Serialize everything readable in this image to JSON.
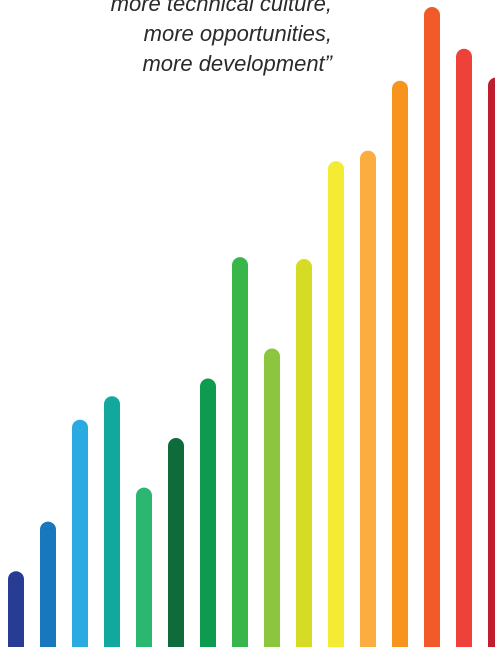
{
  "quote": {
    "lines": [
      "more technical culture,",
      "more opportunities,",
      "more development”"
    ]
  },
  "bars": {
    "scale_max": 1.0,
    "items": [
      {
        "value": 0.136,
        "color": "#283c93"
      },
      {
        "value": 0.212,
        "color": "#1878be"
      },
      {
        "value": 0.368,
        "color": "#29aae1"
      },
      {
        "value": 0.404,
        "color": "#13a89d"
      },
      {
        "value": 0.264,
        "color": "#2cb770"
      },
      {
        "value": 0.34,
        "color": "#0f6b3a"
      },
      {
        "value": 0.431,
        "color": "#0e9a4f"
      },
      {
        "value": 0.617,
        "color": "#39b64a"
      },
      {
        "value": 0.477,
        "color": "#8cc63e"
      },
      {
        "value": 0.614,
        "color": "#d6dc26"
      },
      {
        "value": 0.764,
        "color": "#f4eb34"
      },
      {
        "value": 0.78,
        "color": "#fbae3f"
      },
      {
        "value": 0.887,
        "color": "#f7941e"
      },
      {
        "value": 1.0,
        "color": "#f15a29"
      },
      {
        "value": 0.936,
        "color": "#ed413a"
      },
      {
        "value": 0.892,
        "color": "#be1e2d"
      }
    ]
  }
}
